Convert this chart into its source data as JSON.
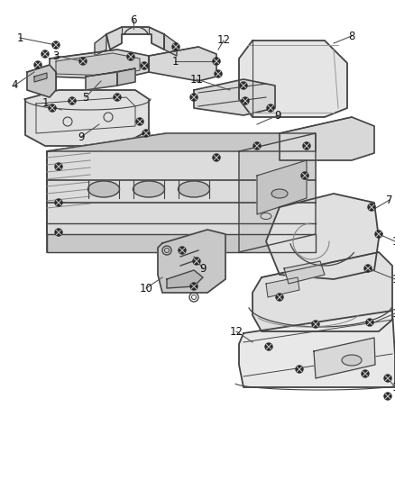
{
  "bg_color": "#ffffff",
  "line_color": "#444444",
  "text_color": "#111111",
  "fig_width": 4.38,
  "fig_height": 5.33,
  "dpi": 100,
  "label_fs": 8.5,
  "small_fs": 7.0
}
